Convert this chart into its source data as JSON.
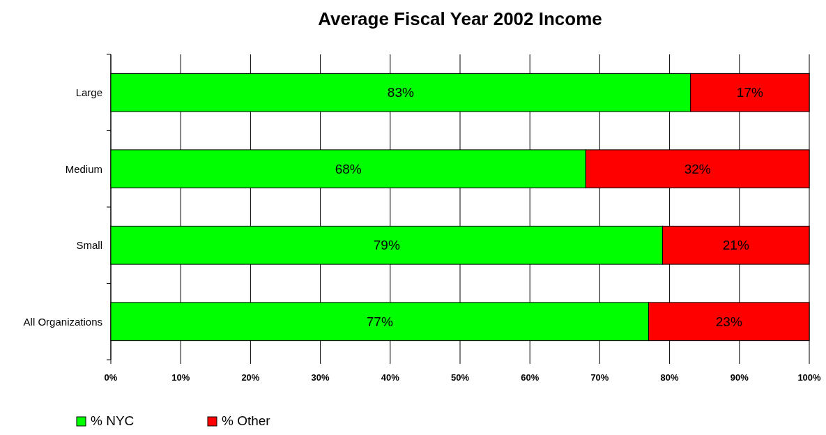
{
  "chart_data": {
    "type": "bar",
    "title": "Average Fiscal Year 2002 Income",
    "orientation": "horizontal",
    "stacked": true,
    "categories": [
      "Large",
      "Medium",
      "Small",
      "All Organizations"
    ],
    "series": [
      {
        "name": "% NYC",
        "color": "#00ff00",
        "values": [
          83,
          68,
          79,
          77
        ],
        "value_labels": [
          "83%",
          "68%",
          "79%",
          "77%"
        ]
      },
      {
        "name": "% Other",
        "color": "#ff0000",
        "values": [
          17,
          32,
          21,
          23
        ],
        "value_labels": [
          "17%",
          "32%",
          "21%",
          "23%"
        ]
      }
    ],
    "xlim": [
      0,
      100
    ],
    "xticks": [
      {
        "value": 0,
        "label": "0%"
      },
      {
        "value": 10,
        "label": "10%"
      },
      {
        "value": 20,
        "label": "20%"
      },
      {
        "value": 30,
        "label": "30%"
      },
      {
        "value": 40,
        "label": "40%"
      },
      {
        "value": 50,
        "label": "50%"
      },
      {
        "value": 60,
        "label": "60%"
      },
      {
        "value": 70,
        "label": "70%"
      },
      {
        "value": 80,
        "label": "80%"
      },
      {
        "value": 90,
        "label": "90%"
      },
      {
        "value": 100,
        "label": "100%"
      }
    ],
    "grid": "x",
    "legend": "bottom left"
  }
}
